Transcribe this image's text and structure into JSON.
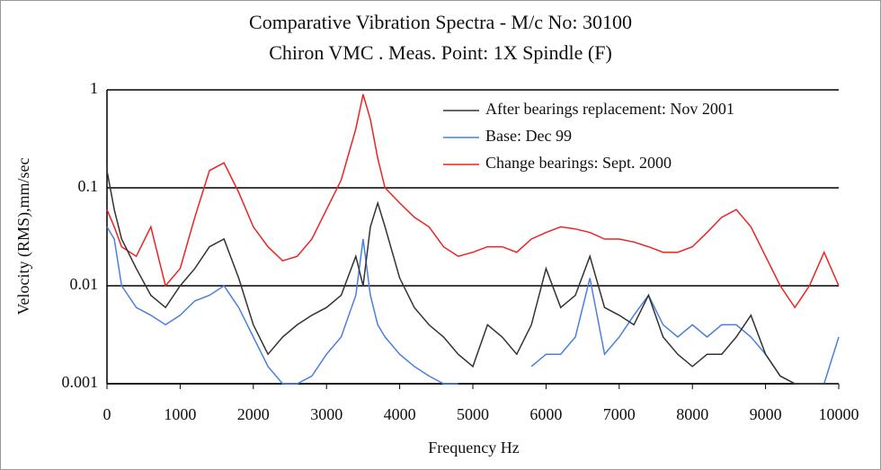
{
  "chart_data": {
    "type": "line",
    "title": "Comparative Vibration Spectra  - M/c No: 30100",
    "subtitle": "Chiron VMC .  Meas. Point: 1X Spindle (F)",
    "x_label": "Frequency  Hz",
    "y_label": "Velocity (RMS),mm/sec",
    "y_scale": "log",
    "grid": true,
    "legend": "upper right",
    "xlim": [
      0,
      10000
    ],
    "xticks": [
      0,
      1000,
      2000,
      3000,
      4000,
      5000,
      6000,
      7000,
      8000,
      9000,
      10000
    ],
    "ylim": [
      0.001,
      1
    ],
    "yticks": [
      0.001,
      0.01,
      0.1,
      1
    ],
    "x": [
      0,
      100,
      200,
      400,
      600,
      800,
      1000,
      1200,
      1400,
      1600,
      1800,
      2000,
      2200,
      2400,
      2600,
      2800,
      3000,
      3200,
      3400,
      3500,
      3600,
      3700,
      3800,
      4000,
      4200,
      4400,
      4600,
      4800,
      5000,
      5200,
      5400,
      5600,
      5800,
      6000,
      6200,
      6400,
      6600,
      6800,
      7000,
      7200,
      7400,
      7600,
      7800,
      8000,
      8200,
      8400,
      8600,
      8800,
      9000,
      9200,
      9400,
      9600,
      9800,
      10000
    ],
    "series": [
      {
        "name": "After bearings replacement: Nov 2001",
        "color": "#333333",
        "values": [
          0.15,
          0.06,
          0.03,
          0.015,
          0.008,
          0.006,
          0.01,
          0.015,
          0.025,
          0.03,
          0.012,
          0.004,
          0.002,
          0.003,
          0.004,
          0.005,
          0.006,
          0.008,
          0.02,
          0.01,
          0.04,
          0.07,
          0.04,
          0.012,
          0.006,
          0.004,
          0.003,
          0.002,
          0.0015,
          0.004,
          0.003,
          0.002,
          0.004,
          0.015,
          0.006,
          0.008,
          0.02,
          0.006,
          0.005,
          0.004,
          0.008,
          0.003,
          0.002,
          0.0015,
          0.002,
          0.002,
          0.003,
          0.005,
          0.002,
          0.0012,
          0.001,
          0.001,
          0.001,
          0.001
        ]
      },
      {
        "name": "Base: Dec 99",
        "color": "#4a7fe0",
        "values": [
          0.04,
          0.03,
          0.01,
          0.006,
          0.005,
          0.004,
          0.005,
          0.007,
          0.008,
          0.01,
          0.006,
          0.003,
          0.0015,
          0.001,
          0.001,
          0.0012,
          0.002,
          0.003,
          0.008,
          0.03,
          0.008,
          0.004,
          0.003,
          0.002,
          0.0015,
          0.0012,
          0.001,
          0.001,
          null,
          null,
          null,
          null,
          0.0015,
          0.002,
          0.002,
          0.003,
          0.012,
          0.002,
          0.003,
          0.005,
          0.008,
          0.004,
          0.003,
          0.004,
          0.003,
          0.004,
          0.004,
          0.003,
          0.002,
          0.0012,
          0.001,
          0.001,
          0.001,
          0.003
        ]
      },
      {
        "name": "Change bearings: Sept. 2000",
        "color": "#ee2222",
        "values": [
          0.06,
          0.04,
          0.025,
          0.02,
          0.04,
          0.01,
          0.015,
          0.05,
          0.15,
          0.18,
          0.09,
          0.04,
          0.025,
          0.018,
          0.02,
          0.03,
          0.06,
          0.12,
          0.4,
          0.9,
          0.5,
          0.2,
          0.1,
          0.07,
          0.05,
          0.04,
          0.025,
          0.02,
          0.022,
          0.025,
          0.025,
          0.022,
          0.03,
          0.035,
          0.04,
          0.038,
          0.035,
          0.03,
          0.03,
          0.028,
          0.025,
          0.022,
          0.022,
          0.025,
          0.035,
          0.05,
          0.06,
          0.04,
          0.02,
          0.01,
          0.006,
          0.01,
          0.022,
          0.01
        ]
      }
    ]
  }
}
